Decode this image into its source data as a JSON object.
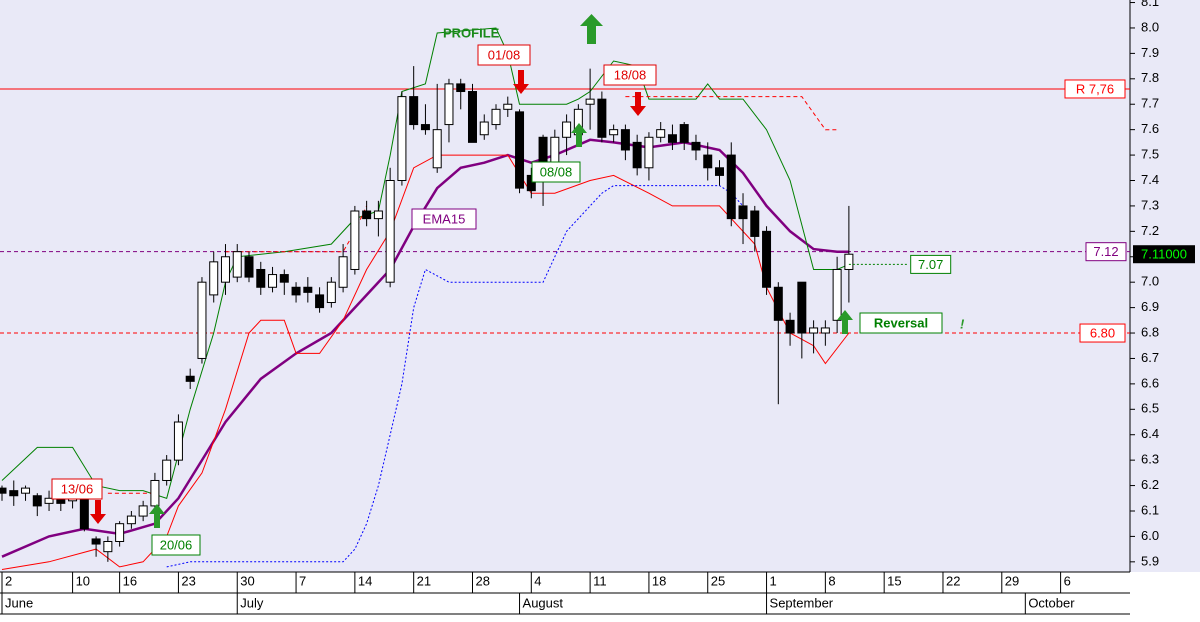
{
  "chart_data": {
    "type": "candlestick",
    "open": [
      6.19,
      6.18,
      6.17,
      6.16,
      6.13,
      6.15,
      6.14,
      6.16,
      5.99,
      5.94,
      5.98,
      6.05,
      6.08,
      6.12,
      6.22,
      6.3,
      6.63,
      6.7,
      6.95,
      7.0,
      7.02,
      7.1,
      7.05,
      6.98,
      7.03,
      6.98,
      6.98,
      6.95,
      6.92,
      6.98,
      7.05,
      7.28,
      7.25,
      7.0,
      7.4,
      7.73,
      7.62,
      7.45,
      7.62,
      7.78,
      7.75,
      7.58,
      7.62,
      7.68,
      7.67,
      7.42,
      7.57,
      7.45,
      7.57,
      7.58,
      7.7,
      7.72,
      7.58,
      7.6,
      7.55,
      7.45,
      7.57,
      7.58,
      7.62,
      7.55,
      7.5,
      7.45,
      7.5,
      7.3,
      7.28,
      7.2,
      6.98,
      6.85,
      7.0,
      6.8,
      6.8,
      6.85,
      7.05
    ],
    "high": [
      6.2,
      6.22,
      6.2,
      6.17,
      6.18,
      6.16,
      6.17,
      6.17,
      6.0,
      6.0,
      6.06,
      6.1,
      6.14,
      6.25,
      6.32,
      6.48,
      6.66,
      7.02,
      7.12,
      7.15,
      7.15,
      7.12,
      7.08,
      7.06,
      7.05,
      7.0,
      7.02,
      6.98,
      7.02,
      7.15,
      7.3,
      7.32,
      7.32,
      7.45,
      7.75,
      7.85,
      7.7,
      7.78,
      7.8,
      7.8,
      7.78,
      7.66,
      7.7,
      7.73,
      7.68,
      7.45,
      7.58,
      7.6,
      7.66,
      7.7,
      7.84,
      7.75,
      7.62,
      7.62,
      7.58,
      7.59,
      7.63,
      7.62,
      7.63,
      7.58,
      7.55,
      7.48,
      7.55,
      7.35,
      7.3,
      7.22,
      7.0,
      6.88,
      7.0,
      6.85,
      6.85,
      7.1,
      7.3
    ],
    "low": [
      6.14,
      6.12,
      6.14,
      6.08,
      6.1,
      6.1,
      6.11,
      6.02,
      5.92,
      5.9,
      5.96,
      6.03,
      6.06,
      6.1,
      6.2,
      6.28,
      6.58,
      6.68,
      6.92,
      6.95,
      7.0,
      7.0,
      6.95,
      6.96,
      6.95,
      6.92,
      6.92,
      6.88,
      6.9,
      6.96,
      7.03,
      7.22,
      7.18,
      6.98,
      7.38,
      7.6,
      7.58,
      7.43,
      7.55,
      7.68,
      7.55,
      7.56,
      7.6,
      7.65,
      7.35,
      7.33,
      7.3,
      7.4,
      7.5,
      7.55,
      7.6,
      7.55,
      7.55,
      7.48,
      7.42,
      7.4,
      7.55,
      7.52,
      7.52,
      7.48,
      7.4,
      7.38,
      7.22,
      7.15,
      7.12,
      6.95,
      6.52,
      6.75,
      6.7,
      6.72,
      6.75,
      6.8,
      6.92
    ],
    "close": [
      6.17,
      6.16,
      6.19,
      6.12,
      6.15,
      6.13,
      6.16,
      6.03,
      5.97,
      5.98,
      6.05,
      6.08,
      6.12,
      6.22,
      6.3,
      6.45,
      6.61,
      7.0,
      7.08,
      7.1,
      7.12,
      7.02,
      6.98,
      7.03,
      7.0,
      6.95,
      6.96,
      6.9,
      7.0,
      7.1,
      7.28,
      7.25,
      7.28,
      7.4,
      7.73,
      7.62,
      7.6,
      7.6,
      7.78,
      7.75,
      7.55,
      7.63,
      7.68,
      7.7,
      7.37,
      7.36,
      7.4,
      7.57,
      7.63,
      7.68,
      7.72,
      7.57,
      7.6,
      7.52,
      7.45,
      7.57,
      7.6,
      7.55,
      7.55,
      7.52,
      7.45,
      7.42,
      7.25,
      7.25,
      7.18,
      6.98,
      6.85,
      6.8,
      6.8,
      6.82,
      6.82,
      7.05,
      7.11
    ],
    "up_color": "#ffffff",
    "down_color": "#000000",
    "lines": [
      {
        "name": "EMA15",
        "color": "#800080",
        "width": 2.5,
        "style": "solid",
        "x": [
          0,
          4,
          7,
          10,
          13,
          15,
          17,
          19,
          22,
          25,
          28,
          30,
          33,
          35,
          37,
          39,
          41,
          43,
          45,
          47,
          50,
          52,
          55,
          58,
          61,
          63,
          65,
          67,
          69,
          71,
          72
        ],
        "values": [
          5.92,
          6.0,
          6.03,
          6.01,
          6.05,
          6.15,
          6.3,
          6.45,
          6.62,
          6.72,
          6.8,
          6.9,
          7.05,
          7.22,
          7.37,
          7.45,
          7.47,
          7.5,
          7.47,
          7.5,
          7.56,
          7.55,
          7.53,
          7.55,
          7.52,
          7.43,
          7.3,
          7.2,
          7.13,
          7.12,
          7.12
        ]
      },
      {
        "color": "#008000",
        "width": 1,
        "style": "solid",
        "x": [
          0,
          3,
          6,
          8,
          10,
          12,
          14,
          16,
          18,
          19,
          20,
          24,
          28,
          30,
          32,
          33,
          34,
          36,
          37,
          42,
          43,
          44,
          48,
          49,
          50,
          52,
          54,
          55,
          59,
          60,
          61,
          63,
          65,
          67,
          69,
          71,
          72
        ],
        "values": [
          6.22,
          6.35,
          6.35,
          6.2,
          6.18,
          6.18,
          6.15,
          6.5,
          6.8,
          7.0,
          7.1,
          7.12,
          7.15,
          7.25,
          7.28,
          7.5,
          7.75,
          7.78,
          7.98,
          8.0,
          7.9,
          7.7,
          7.7,
          7.72,
          7.75,
          7.87,
          7.85,
          7.72,
          7.72,
          7.78,
          7.72,
          7.72,
          7.6,
          7.4,
          7.05,
          7.05,
          7.07
        ]
      },
      {
        "color": "#ff0000",
        "width": 1,
        "style": "solid",
        "x": [
          0,
          4,
          8,
          10,
          12,
          14,
          15,
          17,
          19,
          21,
          22,
          24,
          25,
          27,
          29,
          31,
          33,
          35,
          37,
          40,
          43,
          45,
          47,
          50,
          52,
          55,
          57,
          61,
          64,
          65,
          67,
          69,
          70,
          72
        ],
        "values": [
          5.87,
          5.9,
          5.95,
          5.88,
          5.9,
          6.0,
          6.12,
          6.25,
          6.5,
          6.8,
          6.85,
          6.85,
          6.72,
          6.72,
          6.85,
          7.05,
          7.2,
          7.45,
          7.5,
          7.5,
          7.5,
          7.35,
          7.35,
          7.4,
          7.42,
          7.35,
          7.3,
          7.3,
          7.15,
          6.98,
          6.8,
          6.75,
          6.68,
          6.8
        ]
      },
      {
        "color": "#0000ff",
        "width": 1,
        "style": "dotted",
        "x": [
          14,
          16,
          29,
          30,
          31,
          32,
          33,
          34,
          35,
          36,
          38,
          46,
          47,
          48,
          49,
          50,
          51,
          52,
          61,
          62,
          63
        ],
        "values": [
          5.88,
          5.9,
          5.9,
          5.95,
          6.05,
          6.2,
          6.4,
          6.6,
          6.9,
          7.05,
          7.0,
          7.0,
          7.1,
          7.2,
          7.25,
          7.3,
          7.35,
          7.38,
          7.38,
          7.35,
          7.3
        ]
      },
      {
        "color": "#ff0000",
        "width": 1,
        "style": "dashed",
        "x": [
          9,
          13,
          null,
          19,
          29,
          30,
          31,
          null,
          53,
          68,
          70,
          71
        ],
        "values": [
          6.17,
          6.17,
          null,
          7.12,
          7.12,
          7.2,
          7.3,
          null,
          7.73,
          7.73,
          7.6,
          7.6
        ]
      }
    ],
    "hlines": [
      {
        "value": 7.76,
        "label": "R 7,76",
        "color": "#ff0000",
        "style": "solid"
      },
      {
        "value": 6.8,
        "label": "6.80",
        "color": "#ff0000",
        "style": "dashed"
      },
      {
        "value": 7.12,
        "label": "7.12",
        "color": "#800080",
        "style": "dashed"
      }
    ],
    "current": {
      "value": 7.11,
      "label": "7.11000"
    },
    "target": {
      "value": 7.07,
      "label": "7.07",
      "x": [
        72,
        77
      ]
    },
    "annotations": [
      "PROFILE",
      "01/08",
      "18/08",
      "13/06",
      "08/08",
      "20/06",
      "EMA15",
      "Reversal",
      "!"
    ],
    "xlim": [
      -0.17,
      95.9
    ],
    "ylim": [
      5.86,
      8.11
    ],
    "yticks": [
      5.9,
      {
        "value": 6,
        "label": "6.0"
      },
      6.1,
      6.2,
      6.3,
      6.4,
      6.5,
      6.6,
      6.7,
      6.8,
      6.9,
      {
        "value": 7,
        "label": "7.0"
      },
      7.1,
      7.2,
      7.3,
      7.4,
      7.5,
      7.6,
      7.7,
      7.8,
      7.9,
      {
        "value": 8,
        "label": "8.0"
      },
      8.1
    ],
    "xticks": [
      {
        "value": 0,
        "label": "2"
      },
      {
        "value": 6,
        "label": "10"
      },
      {
        "value": 10,
        "label": "16"
      },
      {
        "value": 15,
        "label": "23"
      },
      {
        "value": 20,
        "label": "30"
      },
      {
        "value": 25,
        "label": "7"
      },
      {
        "value": 30,
        "label": "14"
      },
      {
        "value": 35,
        "label": "21"
      },
      {
        "value": 40,
        "label": "28"
      },
      {
        "value": 45,
        "label": "4"
      },
      {
        "value": 50,
        "label": "11"
      },
      {
        "value": 55,
        "label": "18"
      },
      {
        "value": 60,
        "label": "25"
      },
      {
        "value": 65,
        "label": "1"
      },
      {
        "value": 70,
        "label": "8"
      },
      {
        "value": 75,
        "label": "15"
      },
      {
        "value": 80,
        "label": "22"
      },
      {
        "value": 85,
        "label": "29"
      },
      {
        "value": 90,
        "label": "6"
      }
    ],
    "month_ticks": [
      {
        "value": 0,
        "label": "June"
      },
      {
        "value": 20,
        "label": "July"
      },
      {
        "value": 44,
        "label": "August"
      },
      {
        "value": 65,
        "label": "September"
      },
      {
        "value": 87,
        "label": "October"
      }
    ]
  }
}
